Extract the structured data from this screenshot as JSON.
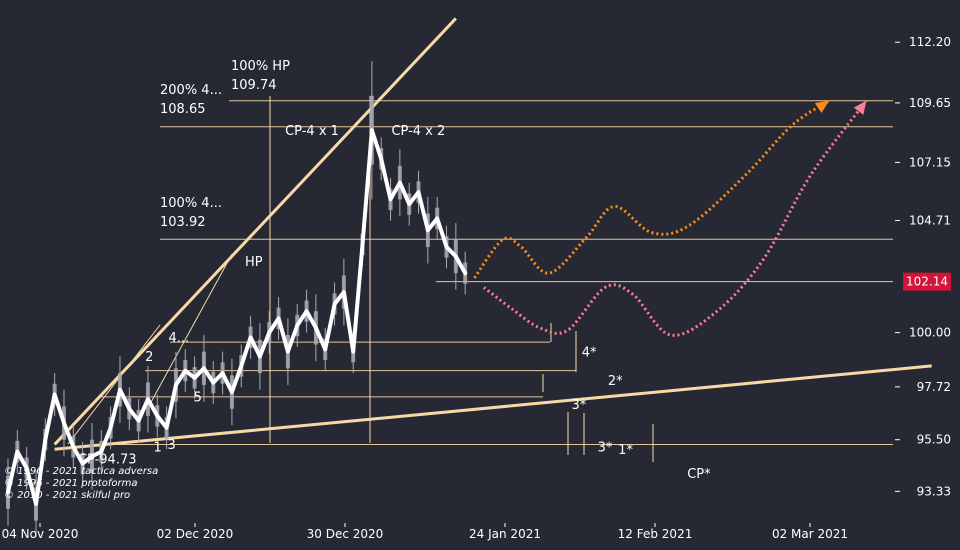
{
  "chart_data": {
    "type": "line",
    "x_axis_labels": [
      "04 Nov 2020",
      "02 Dec 2020",
      "30 Dec 2020",
      "24 Jan 2021",
      "12 Feb 2021",
      "02 Mar 2021"
    ],
    "y_ticks": [
      "112.20",
      "109.65",
      "107.15",
      "104.71",
      "100.00",
      "97.72",
      "95.50",
      "93.33"
    ],
    "ylim": [
      92.0,
      113.2
    ],
    "current_price": "102.14",
    "price_series": [
      {
        "day": 0,
        "y": 93.3
      },
      {
        "day": 1,
        "y": 95.0
      },
      {
        "day": 2,
        "y": 94.3
      },
      {
        "day": 3,
        "y": 92.8
      },
      {
        "day": 4,
        "y": 95.5
      },
      {
        "day": 5,
        "y": 97.4
      },
      {
        "day": 6,
        "y": 96.2
      },
      {
        "day": 7,
        "y": 95.2
      },
      {
        "day": 8,
        "y": 94.5
      },
      {
        "day": 9,
        "y": 94.8
      },
      {
        "day": 10,
        "y": 95.0
      },
      {
        "day": 11,
        "y": 96.0
      },
      {
        "day": 12,
        "y": 97.6
      },
      {
        "day": 13,
        "y": 96.8
      },
      {
        "day": 14,
        "y": 96.3
      },
      {
        "day": 15,
        "y": 97.2
      },
      {
        "day": 16,
        "y": 96.5
      },
      {
        "day": 17,
        "y": 96.0
      },
      {
        "day": 18,
        "y": 97.8
      },
      {
        "day": 19,
        "y": 98.4
      },
      {
        "day": 20,
        "y": 98.1
      },
      {
        "day": 21,
        "y": 98.5
      },
      {
        "day": 22,
        "y": 97.9
      },
      {
        "day": 23,
        "y": 98.3
      },
      {
        "day": 24,
        "y": 97.5
      },
      {
        "day": 25,
        "y": 98.6
      },
      {
        "day": 26,
        "y": 99.8
      },
      {
        "day": 27,
        "y": 99.0
      },
      {
        "day": 28,
        "y": 100.0
      },
      {
        "day": 29,
        "y": 100.6
      },
      {
        "day": 30,
        "y": 99.2
      },
      {
        "day": 31,
        "y": 100.3
      },
      {
        "day": 32,
        "y": 100.9
      },
      {
        "day": 33,
        "y": 100.2
      },
      {
        "day": 34,
        "y": 99.3
      },
      {
        "day": 35,
        "y": 101.2
      },
      {
        "day": 36,
        "y": 101.7
      },
      {
        "day": 37,
        "y": 99.2
      },
      {
        "day": 38,
        "y": 103.7
      },
      {
        "day": 39,
        "y": 108.5
      },
      {
        "day": 40,
        "y": 107.3
      },
      {
        "day": 41,
        "y": 105.6
      },
      {
        "day": 42,
        "y": 106.3
      },
      {
        "day": 43,
        "y": 105.4
      },
      {
        "day": 44,
        "y": 105.9
      },
      {
        "day": 45,
        "y": 104.3
      },
      {
        "day": 46,
        "y": 104.8
      },
      {
        "day": 47,
        "y": 103.6
      },
      {
        "day": 48,
        "y": 103.2
      },
      {
        "day": 49,
        "y": 102.5
      }
    ],
    "projection_orange": [
      {
        "day": 50,
        "y": 102.3
      },
      {
        "day": 53,
        "y": 103.9
      },
      {
        "day": 55,
        "y": 103.6
      },
      {
        "day": 58,
        "y": 102.5
      },
      {
        "day": 62,
        "y": 104.0
      },
      {
        "day": 65,
        "y": 105.3
      },
      {
        "day": 69,
        "y": 104.2
      },
      {
        "day": 73,
        "y": 104.5
      },
      {
        "day": 79,
        "y": 106.6
      },
      {
        "day": 84,
        "y": 108.7
      },
      {
        "day": 88,
        "y": 109.74
      }
    ],
    "projection_pink": [
      {
        "day": 51,
        "y": 101.9
      },
      {
        "day": 54,
        "y": 101.0
      },
      {
        "day": 57,
        "y": 100.2
      },
      {
        "day": 60,
        "y": 100.1
      },
      {
        "day": 64,
        "y": 101.9
      },
      {
        "day": 67,
        "y": 101.6
      },
      {
        "day": 71,
        "y": 99.9
      },
      {
        "day": 76,
        "y": 100.9
      },
      {
        "day": 81,
        "y": 103.1
      },
      {
        "day": 86,
        "y": 106.6
      },
      {
        "day": 92,
        "y": 109.74
      }
    ],
    "trendlines": [
      {
        "name": "upper-fan",
        "from": {
          "day": 5,
          "y": 95.3
        },
        "to": {
          "day": 48,
          "y": 113.2
        }
      },
      {
        "name": "lower-base",
        "from": {
          "day": 5,
          "y": 95.1
        },
        "to": {
          "day": 99,
          "y": 98.6
        }
      }
    ],
    "levels": [
      {
        "label": "100% HP",
        "value_label": "109.74",
        "y": 109.74
      },
      {
        "label": "200% 4...",
        "value_label": "108.65",
        "y": 108.65
      },
      {
        "label": "100% 4...",
        "value_label": "103.92",
        "y": 103.92
      },
      {
        "label": "",
        "value_label": "",
        "y": 102.14
      },
      {
        "label": "",
        "value_label": "",
        "y": 99.6
      },
      {
        "label": "",
        "value_label": "",
        "y": 98.4
      },
      {
        "label": "",
        "value_label": "",
        "y": 97.3
      },
      {
        "label": "",
        "value_label": "",
        "y": 95.3
      }
    ],
    "annotations": [
      {
        "text": "HP",
        "day": 25.4,
        "y": 102.8
      },
      {
        "text": "CP-4 x 1",
        "day": 29.7,
        "y": 108.3
      },
      {
        "text": "CP-4 x 2",
        "day": 41.1,
        "y": 108.3
      },
      {
        "text": "CP-94.73",
        "day": 7.5,
        "y": 94.5
      },
      {
        "text": "4...",
        "day": 17.2,
        "y": 99.6
      },
      {
        "text": "2",
        "day": 14.7,
        "y": 98.8
      },
      {
        "text": "5",
        "day": 19.9,
        "y": 97.1
      },
      {
        "text": "1",
        "day": 15.6,
        "y": 95.0
      },
      {
        "text": "3",
        "day": 17.1,
        "y": 95.1
      },
      {
        "text": "4*",
        "day": 61.5,
        "y": 99.0
      },
      {
        "text": "2*",
        "day": 64.3,
        "y": 97.8
      },
      {
        "text": "3*",
        "day": 60.4,
        "y": 96.8
      },
      {
        "text": "3*",
        "day": 63.2,
        "y": 95.0
      },
      {
        "text": "1*",
        "day": 65.4,
        "y": 94.9
      },
      {
        "text": "CP*",
        "day": 72.8,
        "y": 93.9
      }
    ],
    "copyright": [
      "© 1996 - 2021 tactica adversa",
      "© 1996 - 2021 protoforma",
      "© 2010 - 2021 skilful pro"
    ]
  },
  "colors": {
    "background": "#262933",
    "trend": "#f7d9a8",
    "price": "#ffffff",
    "candle": "#a9a9b3",
    "orange_projection": "#ff8c1a",
    "pink_projection": "#ff7c93",
    "price_tag": "#d2143a"
  }
}
